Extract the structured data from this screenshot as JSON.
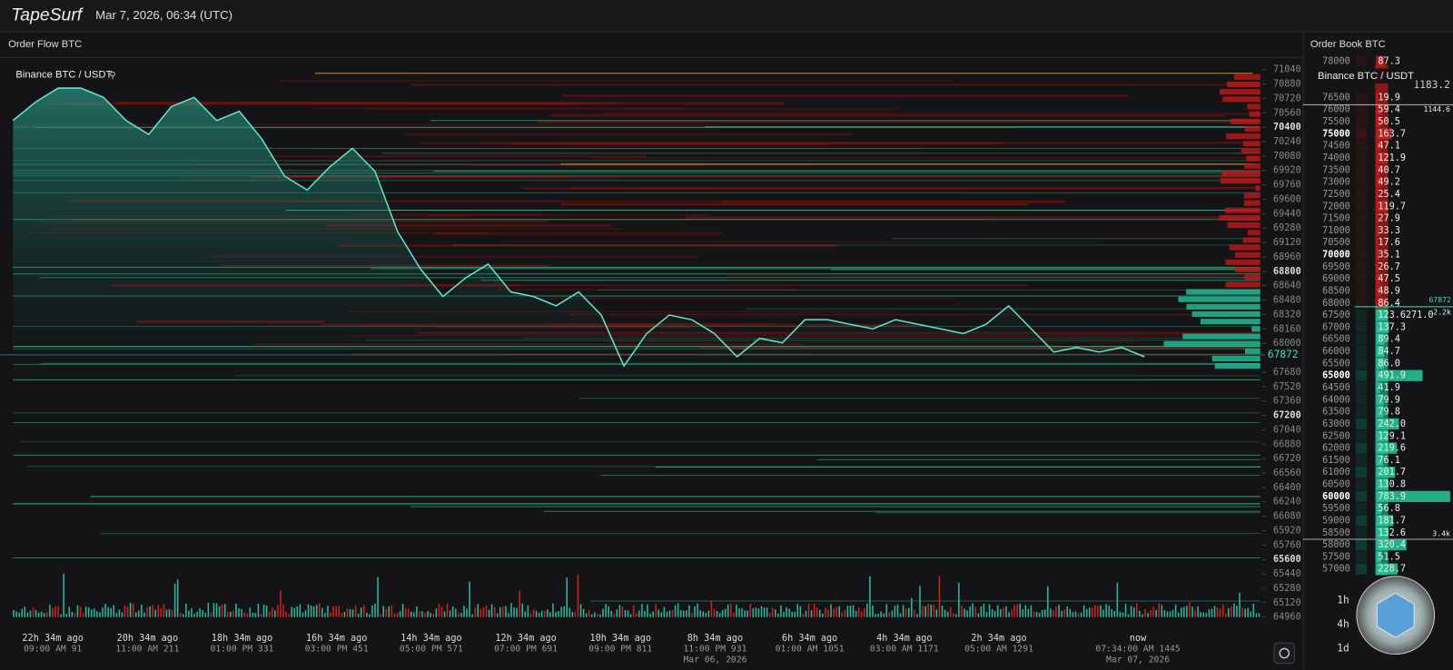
{
  "header": {
    "logo": "TapeSurf",
    "datetime": "Mar 7, 2026, 06:34 (UTC)"
  },
  "order_flow": {
    "title": "Order Flow BTC",
    "pair": "Binance BTC / USDT",
    "price_ticks": [
      71040,
      70880,
      70720,
      70560,
      70400,
      70240,
      70080,
      69920,
      69760,
      69600,
      69440,
      69280,
      69120,
      68960,
      68800,
      68640,
      68480,
      68320,
      68160,
      68000,
      67680,
      67520,
      67360,
      67200,
      67040,
      66880,
      66720,
      66560,
      66400,
      66240,
      66080,
      65920,
      65760,
      65600,
      65440,
      65280,
      65120,
      64960
    ],
    "current_price": 67872,
    "price_series": [
      70474,
      70680,
      70834,
      70834,
      70731,
      70474,
      70320,
      70628,
      70731,
      70474,
      70577,
      70268,
      69857,
      69703,
      69960,
      70166,
      69908,
      69240,
      68828,
      68520,
      68726,
      68880,
      68571,
      68520,
      68417,
      68571,
      68314,
      67748,
      68108,
      68314,
      68262,
      68108,
      67851,
      68057,
      68005,
      68262,
      68262,
      68211,
      68160,
      68262,
      68211,
      68160,
      68108,
      68211,
      68417,
      68160,
      67903,
      67954,
      67903,
      67954,
      67851
    ],
    "time_axis": [
      {
        "ago": "22h 34m ago",
        "time": "09:00 AM 91"
      },
      {
        "ago": "20h 34m ago",
        "time": "11:00 AM 211"
      },
      {
        "ago": "18h 34m ago",
        "time": "01:00 PM 331"
      },
      {
        "ago": "16h 34m ago",
        "time": "03:00 PM 451"
      },
      {
        "ago": "14h 34m ago",
        "time": "05:00 PM 571"
      },
      {
        "ago": "12h 34m ago",
        "time": "07:00 PM 691"
      },
      {
        "ago": "10h 34m ago",
        "time": "09:00 PM 811"
      },
      {
        "ago": "8h 34m ago",
        "time": "11:00 PM 931",
        "date": "Mar 06, 2026"
      },
      {
        "ago": "6h 34m ago",
        "time": "01:00 AM 1051"
      },
      {
        "ago": "4h 34m ago",
        "time": "03:00 AM 1171"
      },
      {
        "ago": "2h 34m ago",
        "time": "05:00 AM 1291"
      },
      {
        "ago": "now",
        "time": "07:34:00 AM 1445",
        "date": "Mar 07, 2026"
      }
    ]
  },
  "order_book": {
    "title": "Order Book BTC",
    "pair": "Binance BTC / USDT",
    "rows": [
      [
        78000,
        "87.3"
      ],
      [
        76500,
        "19.9"
      ],
      [
        76000,
        "59.4"
      ],
      [
        75500,
        "50.5"
      ],
      [
        75000,
        "163.7"
      ],
      [
        74500,
        "47.1"
      ],
      [
        74000,
        "121.9"
      ],
      [
        73500,
        "40.7"
      ],
      [
        73000,
        "49.2"
      ],
      [
        72500,
        "25.4"
      ],
      [
        72000,
        "119.7"
      ],
      [
        71500,
        "27.9"
      ],
      [
        71000,
        "33.3"
      ],
      [
        70500,
        "17.6"
      ],
      [
        70000,
        "35.1"
      ],
      [
        69500,
        "26.7"
      ],
      [
        69000,
        "47.5"
      ],
      [
        68500,
        "48.9"
      ],
      [
        68000,
        "86.4"
      ],
      [
        67500,
        "123.6"
      ],
      [
        67000,
        "137.3"
      ],
      [
        66500,
        "89.4"
      ],
      [
        66000,
        "84.7"
      ],
      [
        65500,
        "86.0"
      ],
      [
        65000,
        "491.9"
      ],
      [
        64500,
        "41.9"
      ],
      [
        64000,
        "79.9"
      ],
      [
        63500,
        "79.8"
      ],
      [
        63000,
        "242.0"
      ],
      [
        62500,
        "129.1"
      ],
      [
        62000,
        "219.6"
      ],
      [
        61500,
        "76.1"
      ],
      [
        61000,
        "201.7"
      ],
      [
        60500,
        "130.8"
      ],
      [
        60000,
        "783.9"
      ],
      [
        59500,
        "56.8"
      ],
      [
        59000,
        "181.7"
      ],
      [
        58500,
        "132.6"
      ],
      [
        58000,
        "320.4"
      ],
      [
        57500,
        "51.5"
      ],
      [
        57000,
        "228.7"
      ]
    ],
    "side_labels": [
      "1183.2",
      "1144.6",
      "67872",
      "271.0",
      "2.2k",
      "3.4k"
    ],
    "timeframes": [
      "1h",
      "4h",
      "1d"
    ]
  }
}
